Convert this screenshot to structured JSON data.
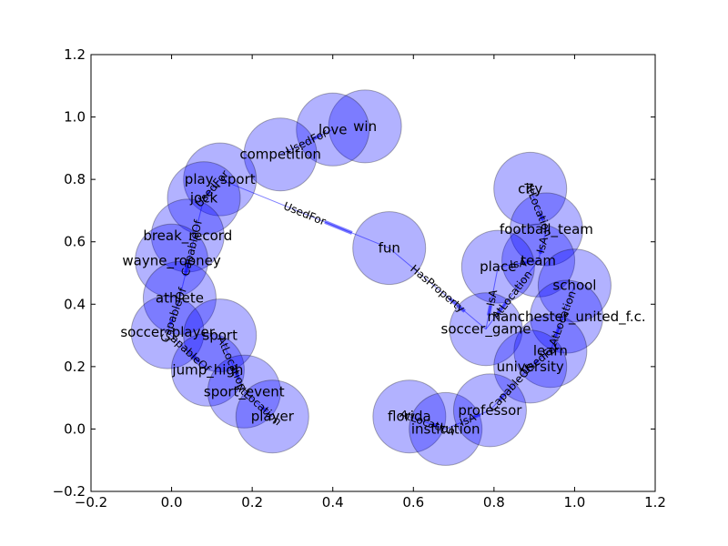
{
  "chart_data": {
    "type": "network",
    "title": "",
    "xlabel": "",
    "ylabel": "",
    "xlim": [
      -0.2,
      1.2
    ],
    "ylim": [
      -0.2,
      1.2
    ],
    "grid": false,
    "xticks": [
      "−0.2",
      "0.0",
      "0.2",
      "0.4",
      "0.6",
      "0.8",
      "1.0",
      "1.2"
    ],
    "yticks": [
      "−0.2",
      "0.0",
      "0.2",
      "0.4",
      "0.6",
      "0.8",
      "1.0",
      "1.2"
    ],
    "node_color": "#0000ff",
    "edge_color": "#0000ff",
    "nodes": [
      {
        "label": "win",
        "x": 0.48,
        "y": 0.97
      },
      {
        "label": "love",
        "x": 0.4,
        "y": 0.96
      },
      {
        "label": "competition",
        "x": 0.27,
        "y": 0.88
      },
      {
        "label": "play_sport",
        "x": 0.12,
        "y": 0.8
      },
      {
        "label": "jock",
        "x": 0.08,
        "y": 0.74
      },
      {
        "label": "break_record",
        "x": 0.04,
        "y": 0.62
      },
      {
        "label": "wayne_rooney",
        "x": 0.0,
        "y": 0.54
      },
      {
        "label": "athlete",
        "x": 0.02,
        "y": 0.42
      },
      {
        "label": "soccer_player",
        "x": -0.01,
        "y": 0.31
      },
      {
        "label": "sport",
        "x": 0.12,
        "y": 0.3
      },
      {
        "label": "jump_high",
        "x": 0.09,
        "y": 0.19
      },
      {
        "label": "sport_event",
        "x": 0.18,
        "y": 0.12
      },
      {
        "label": "player",
        "x": 0.25,
        "y": 0.04
      },
      {
        "label": "fun",
        "x": 0.54,
        "y": 0.58
      },
      {
        "label": "city",
        "x": 0.89,
        "y": 0.77
      },
      {
        "label": "football_team",
        "x": 0.93,
        "y": 0.64
      },
      {
        "label": "team",
        "x": 0.91,
        "y": 0.54
      },
      {
        "label": "place",
        "x": 0.81,
        "y": 0.52
      },
      {
        "label": "school",
        "x": 1.0,
        "y": 0.46
      },
      {
        "label": "manchester_united_f.c.",
        "x": 0.98,
        "y": 0.36
      },
      {
        "label": "soccer_game",
        "x": 0.78,
        "y": 0.32
      },
      {
        "label": "learn",
        "x": 0.94,
        "y": 0.25
      },
      {
        "label": "university",
        "x": 0.89,
        "y": 0.2
      },
      {
        "label": "florida",
        "x": 0.59,
        "y": 0.04
      },
      {
        "label": "institution",
        "x": 0.68,
        "y": 0.0
      },
      {
        "label": "professor",
        "x": 0.79,
        "y": 0.06
      }
    ],
    "edges": [
      {
        "from": "competition",
        "to": "love",
        "label": "UsedFor"
      },
      {
        "from": "play_sport",
        "to": "fun",
        "label": "UsedFor"
      },
      {
        "from": "fun",
        "to": "soccer_game",
        "label": "HasProperty"
      },
      {
        "from": "play_sport",
        "to": "jock",
        "label": "UsedFor"
      },
      {
        "from": "jock",
        "to": "athlete",
        "label": "CapableOf"
      },
      {
        "from": "athlete",
        "to": "soccer_player",
        "label": "CapableOf"
      },
      {
        "from": "soccer_player",
        "to": "jump_high",
        "label": "CapableOf"
      },
      {
        "from": "sport",
        "to": "sport_event",
        "label": "AtLocation"
      },
      {
        "from": "sport_event",
        "to": "player",
        "label": "AtLocation"
      },
      {
        "from": "place",
        "to": "team",
        "label": "IsA"
      },
      {
        "from": "city",
        "to": "football_team",
        "label": "AtLocation"
      },
      {
        "from": "football_team",
        "to": "team",
        "label": "IsA"
      },
      {
        "from": "place",
        "to": "soccer_game",
        "label": "IsA"
      },
      {
        "from": "team",
        "to": "soccer_game",
        "label": "AtLocation"
      },
      {
        "from": "school",
        "to": "learn",
        "label": "AtLocation"
      },
      {
        "from": "learn",
        "to": "university",
        "label": "UsedFor"
      },
      {
        "from": "university",
        "to": "professor",
        "label": "CapableOf"
      },
      {
        "from": "institution",
        "to": "professor",
        "label": "IsA"
      },
      {
        "from": "florida",
        "to": "institution",
        "label": "AtLocation"
      }
    ]
  }
}
